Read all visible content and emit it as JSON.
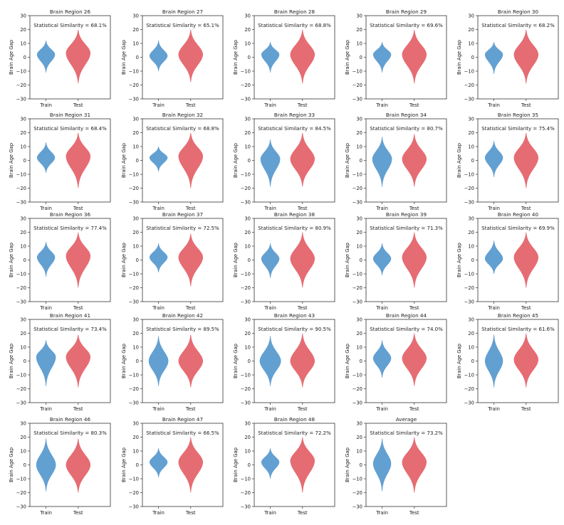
{
  "chart_data": {
    "type": "violin",
    "ylabel": "Brain Age Gap",
    "ylim": [
      -30,
      30
    ],
    "yticks": [
      -30,
      -20,
      -10,
      0,
      10,
      20,
      30
    ],
    "categories": [
      "Train",
      "Test"
    ],
    "colors": {
      "train": "#5b9bd0",
      "test": "#e5646b"
    },
    "annotation_prefix": "Statistical Similarity = ",
    "panels": [
      {
        "title": "Brain Region 26",
        "similarity": "68.1%",
        "train": {
          "min": -11,
          "max": 12,
          "peak": 2,
          "w": 0.55
        },
        "test": {
          "min": -19,
          "max": 20,
          "peak": 3,
          "w": 0.75
        }
      },
      {
        "title": "Brain Region 27",
        "similarity": "65.1%",
        "train": {
          "min": -10,
          "max": 12,
          "peak": 1,
          "w": 0.55
        },
        "test": {
          "min": -18,
          "max": 20,
          "peak": 2,
          "w": 0.75
        }
      },
      {
        "title": "Brain Region 28",
        "similarity": "68.8%",
        "train": {
          "min": -11,
          "max": 11,
          "peak": 2,
          "w": 0.55
        },
        "test": {
          "min": -19,
          "max": 20,
          "peak": 2,
          "w": 0.75
        }
      },
      {
        "title": "Brain Region 29",
        "similarity": "69.6%",
        "train": {
          "min": -11,
          "max": 11,
          "peak": 2,
          "w": 0.55
        },
        "test": {
          "min": -19,
          "max": 20,
          "peak": 2,
          "w": 0.75
        }
      },
      {
        "title": "Brain Region 30",
        "similarity": "68.2%",
        "train": {
          "min": -12,
          "max": 11,
          "peak": 2,
          "w": 0.55
        },
        "test": {
          "min": -19,
          "max": 20,
          "peak": 2,
          "w": 0.75
        }
      },
      {
        "title": "Brain Region 31",
        "similarity": "68.4%",
        "train": {
          "min": -9,
          "max": 13,
          "peak": 2,
          "w": 0.55
        },
        "test": {
          "min": -20,
          "max": 20,
          "peak": 3,
          "w": 0.75
        }
      },
      {
        "title": "Brain Region 32",
        "similarity": "68.8%",
        "train": {
          "min": -8,
          "max": 10,
          "peak": 2,
          "w": 0.55
        },
        "test": {
          "min": -20,
          "max": 20,
          "peak": 3,
          "w": 0.75
        }
      },
      {
        "title": "Brain Region 33",
        "similarity": "84.5%",
        "train": {
          "min": -19,
          "max": 15,
          "peak": 1,
          "w": 0.6
        },
        "test": {
          "min": -19,
          "max": 20,
          "peak": 1,
          "w": 0.75
        }
      },
      {
        "title": "Brain Region 34",
        "similarity": "80.7%",
        "train": {
          "min": -19,
          "max": 17,
          "peak": 1,
          "w": 0.6
        },
        "test": {
          "min": -19,
          "max": 19,
          "peak": 1,
          "w": 0.75
        }
      },
      {
        "title": "Brain Region 35",
        "similarity": "75.4%",
        "train": {
          "min": -12,
          "max": 14,
          "peak": 2,
          "w": 0.55
        },
        "test": {
          "min": -20,
          "max": 20,
          "peak": 2,
          "w": 0.75
        }
      },
      {
        "title": "Brain Region 36",
        "similarity": "77.4%",
        "train": {
          "min": -12,
          "max": 13,
          "peak": 2,
          "w": 0.55
        },
        "test": {
          "min": -20,
          "max": 20,
          "peak": 3,
          "w": 0.75
        }
      },
      {
        "title": "Brain Region 37",
        "similarity": "72.5%",
        "train": {
          "min": -9,
          "max": 12,
          "peak": 2,
          "w": 0.55
        },
        "test": {
          "min": -19,
          "max": 19,
          "peak": 2,
          "w": 0.75
        }
      },
      {
        "title": "Brain Region 38",
        "similarity": "80.9%",
        "train": {
          "min": -13,
          "max": 12,
          "peak": 1,
          "w": 0.55
        },
        "test": {
          "min": -20,
          "max": 20,
          "peak": 1,
          "w": 0.75
        }
      },
      {
        "title": "Brain Region 39",
        "similarity": "71.3%",
        "train": {
          "min": -11,
          "max": 12,
          "peak": 1,
          "w": 0.55
        },
        "test": {
          "min": -20,
          "max": 20,
          "peak": 2,
          "w": 0.75
        }
      },
      {
        "title": "Brain Region 40",
        "similarity": "69.9%",
        "train": {
          "min": -10,
          "max": 14,
          "peak": 1,
          "w": 0.55
        },
        "test": {
          "min": -20,
          "max": 20,
          "peak": 2,
          "w": 0.75
        }
      },
      {
        "title": "Brain Region 41",
        "similarity": "73.4%",
        "train": {
          "min": -18,
          "max": 15,
          "peak": 3,
          "w": 0.6
        },
        "test": {
          "min": -19,
          "max": 19,
          "peak": 3,
          "w": 0.75
        }
      },
      {
        "title": "Brain Region 42",
        "similarity": "89.5%",
        "train": {
          "min": -18,
          "max": 18,
          "peak": 0,
          "w": 0.6
        },
        "test": {
          "min": -19,
          "max": 19,
          "peak": 0,
          "w": 0.75
        }
      },
      {
        "title": "Brain Region 43",
        "similarity": "90.5%",
        "train": {
          "min": -18,
          "max": 18,
          "peak": 0,
          "w": 0.65
        },
        "test": {
          "min": -19,
          "max": 20,
          "peak": 0,
          "w": 0.75
        }
      },
      {
        "title": "Brain Region 44",
        "similarity": "74.0%",
        "train": {
          "min": -12,
          "max": 15,
          "peak": 2,
          "w": 0.55
        },
        "test": {
          "min": -18,
          "max": 20,
          "peak": 2,
          "w": 0.75
        }
      },
      {
        "title": "Brain Region 45",
        "similarity": "61.6%",
        "train": {
          "min": -19,
          "max": 19,
          "peak": 0,
          "w": 0.55
        },
        "test": {
          "min": -19,
          "max": 20,
          "peak": 1,
          "w": 0.75
        }
      },
      {
        "title": "Brain Region 46",
        "similarity": "80.3%",
        "train": {
          "min": -19,
          "max": 19,
          "peak": 0,
          "w": 0.6
        },
        "test": {
          "min": -20,
          "max": 19,
          "peak": 0,
          "w": 0.75
        }
      },
      {
        "title": "Brain Region 47",
        "similarity": "66.5%",
        "train": {
          "min": -9,
          "max": 12,
          "peak": 2,
          "w": 0.55
        },
        "test": {
          "min": -20,
          "max": 20,
          "peak": 2,
          "w": 0.75
        }
      },
      {
        "title": "Brain Region 48",
        "similarity": "72.2%",
        "train": {
          "min": -10,
          "max": 12,
          "peak": 2,
          "w": 0.55
        },
        "test": {
          "min": -20,
          "max": 20,
          "peak": 3,
          "w": 0.75
        }
      },
      {
        "title": "Average",
        "similarity": "73.2%",
        "train": {
          "min": -19,
          "max": 19,
          "peak": 1,
          "w": 0.55
        },
        "test": {
          "min": -20,
          "max": 20,
          "peak": 2,
          "w": 0.75
        }
      }
    ]
  }
}
